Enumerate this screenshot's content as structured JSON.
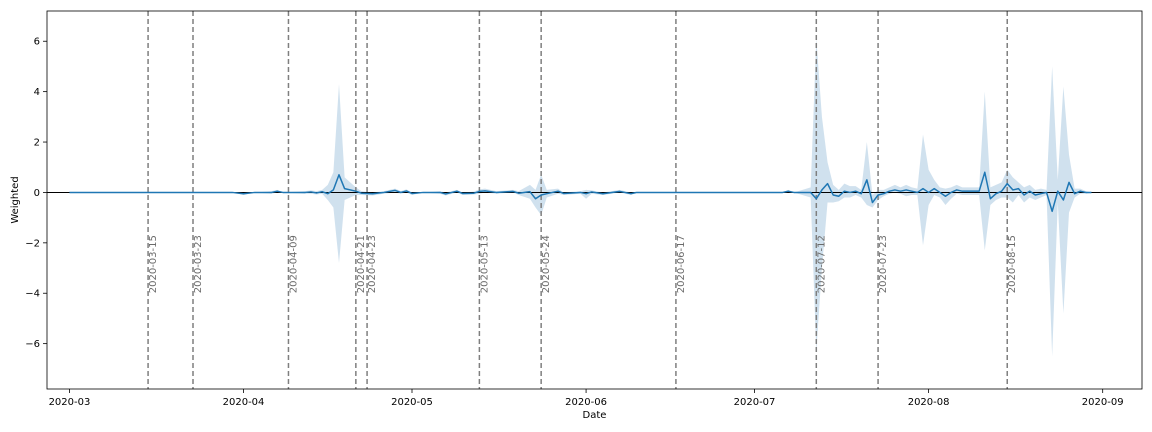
{
  "chart_data": {
    "type": "line",
    "xlabel": "Date",
    "ylabel": "Weighted",
    "x_start": "2020-02-26",
    "x_end": "2020-09-08",
    "ylim": [
      -7.8,
      7.2
    ],
    "y_ticks": [
      -6,
      -4,
      -2,
      0,
      2,
      4,
      6
    ],
    "x_ticks": [
      {
        "date": "2020-03-01",
        "label": "2020-03"
      },
      {
        "date": "2020-04-01",
        "label": "2020-04"
      },
      {
        "date": "2020-05-01",
        "label": "2020-05"
      },
      {
        "date": "2020-06-01",
        "label": "2020-06"
      },
      {
        "date": "2020-07-01",
        "label": "2020-07"
      },
      {
        "date": "2020-08-01",
        "label": "2020-08"
      },
      {
        "date": "2020-09-01",
        "label": "2020-09"
      }
    ],
    "horizontal_line": 0,
    "grid": false,
    "colors": {
      "line": "#1f77b4",
      "band": "#aac8e0",
      "vline": "#7f7f7f",
      "label": "#6b6b6b"
    },
    "vlines": [
      {
        "date": "2020-03-15",
        "label": "2020-03-15"
      },
      {
        "date": "2020-03-23",
        "label": "2020-03-23"
      },
      {
        "date": "2020-04-09",
        "label": "2020-04-09"
      },
      {
        "date": "2020-04-21",
        "label": "2020-04-21"
      },
      {
        "date": "2020-04-23",
        "label": "2020-04-23"
      },
      {
        "date": "2020-05-13",
        "label": "2020-05-13"
      },
      {
        "date": "2020-05-24",
        "label": "2020-05-24"
      },
      {
        "date": "2020-06-17",
        "label": "2020-06-17"
      },
      {
        "date": "2020-07-12",
        "label": "2020-07-12"
      },
      {
        "date": "2020-07-23",
        "label": "2020-07-23"
      },
      {
        "date": "2020-08-15",
        "label": "2020-08-15"
      }
    ],
    "series": [
      {
        "points": [
          {
            "x": "2020-03-01",
            "y": 0,
            "lo": 0,
            "hi": 0
          },
          {
            "x": "2020-03-15",
            "y": 0,
            "lo": 0,
            "hi": 0
          },
          {
            "x": "2020-03-30",
            "y": 0,
            "lo": 0,
            "hi": 0
          },
          {
            "x": "2020-04-01",
            "y": -0.05,
            "lo": -0.1,
            "hi": 0
          },
          {
            "x": "2020-04-03",
            "y": 0,
            "lo": 0,
            "hi": 0
          },
          {
            "x": "2020-04-06",
            "y": 0,
            "lo": -0.05,
            "hi": 0.05
          },
          {
            "x": "2020-04-07",
            "y": 0.05,
            "lo": 0,
            "hi": 0.1
          },
          {
            "x": "2020-04-08",
            "y": 0,
            "lo": 0,
            "hi": 0
          },
          {
            "x": "2020-04-12",
            "y": 0,
            "lo": -0.05,
            "hi": 0.05
          },
          {
            "x": "2020-04-13",
            "y": 0.02,
            "lo": -0.05,
            "hi": 0.08
          },
          {
            "x": "2020-04-14",
            "y": -0.02,
            "lo": -0.08,
            "hi": 0.05
          },
          {
            "x": "2020-04-15",
            "y": 0.03,
            "lo": -0.05,
            "hi": 0.1
          },
          {
            "x": "2020-04-16",
            "y": -0.05,
            "lo": -0.3,
            "hi": 0.3
          },
          {
            "x": "2020-04-17",
            "y": 0.1,
            "lo": -0.6,
            "hi": 0.8
          },
          {
            "x": "2020-04-18",
            "y": 0.7,
            "lo": -2.8,
            "hi": 4.3
          },
          {
            "x": "2020-04-19",
            "y": 0.15,
            "lo": -0.3,
            "hi": 0.6
          },
          {
            "x": "2020-04-21",
            "y": 0.05,
            "lo": -0.1,
            "hi": 0.2
          },
          {
            "x": "2020-04-22",
            "y": -0.03,
            "lo": -0.1,
            "hi": 0.05
          },
          {
            "x": "2020-04-24",
            "y": -0.05,
            "lo": -0.12,
            "hi": 0
          },
          {
            "x": "2020-04-26",
            "y": 0,
            "lo": -0.05,
            "hi": 0.05
          },
          {
            "x": "2020-04-28",
            "y": 0.08,
            "lo": 0,
            "hi": 0.15
          },
          {
            "x": "2020-04-29",
            "y": 0,
            "lo": -0.05,
            "hi": 0.05
          },
          {
            "x": "2020-04-30",
            "y": 0.06,
            "lo": 0,
            "hi": 0.12
          },
          {
            "x": "2020-05-01",
            "y": -0.04,
            "lo": -0.1,
            "hi": 0
          },
          {
            "x": "2020-05-03",
            "y": 0,
            "lo": 0,
            "hi": 0
          },
          {
            "x": "2020-05-06",
            "y": 0,
            "lo": -0.05,
            "hi": 0.05
          },
          {
            "x": "2020-05-07",
            "y": -0.06,
            "lo": -0.12,
            "hi": 0
          },
          {
            "x": "2020-05-09",
            "y": 0.05,
            "lo": 0,
            "hi": 0.1
          },
          {
            "x": "2020-05-10",
            "y": -0.04,
            "lo": -0.1,
            "hi": 0
          },
          {
            "x": "2020-05-12",
            "y": -0.03,
            "lo": -0.08,
            "hi": 0.03
          },
          {
            "x": "2020-05-13",
            "y": 0.04,
            "lo": -0.05,
            "hi": 0.12
          },
          {
            "x": "2020-05-14",
            "y": 0.06,
            "lo": 0,
            "hi": 0.15
          },
          {
            "x": "2020-05-16",
            "y": 0,
            "lo": -0.05,
            "hi": 0.05
          },
          {
            "x": "2020-05-19",
            "y": 0.04,
            "lo": 0,
            "hi": 0.1
          },
          {
            "x": "2020-05-20",
            "y": -0.03,
            "lo": -0.1,
            "hi": 0.05
          },
          {
            "x": "2020-05-22",
            "y": 0.03,
            "lo": -0.25,
            "hi": 0.3
          },
          {
            "x": "2020-05-23",
            "y": -0.25,
            "lo": -0.6,
            "hi": 0.1
          },
          {
            "x": "2020-05-24",
            "y": -0.1,
            "lo": -0.9,
            "hi": 0.7
          },
          {
            "x": "2020-05-25",
            "y": -0.05,
            "lo": -0.2,
            "hi": 0.1
          },
          {
            "x": "2020-05-27",
            "y": 0.05,
            "lo": -0.05,
            "hi": 0.15
          },
          {
            "x": "2020-05-28",
            "y": -0.04,
            "lo": -0.1,
            "hi": 0
          },
          {
            "x": "2020-05-31",
            "y": 0,
            "lo": -0.05,
            "hi": 0.05
          },
          {
            "x": "2020-06-01",
            "y": -0.05,
            "lo": -0.25,
            "hi": 0.1
          },
          {
            "x": "2020-06-02",
            "y": 0.02,
            "lo": -0.05,
            "hi": 0.08
          },
          {
            "x": "2020-06-04",
            "y": -0.05,
            "lo": -0.1,
            "hi": 0
          },
          {
            "x": "2020-06-07",
            "y": 0.04,
            "lo": 0,
            "hi": 0.1
          },
          {
            "x": "2020-06-09",
            "y": -0.05,
            "lo": -0.1,
            "hi": 0
          },
          {
            "x": "2020-06-10",
            "y": 0,
            "lo": 0,
            "hi": 0
          },
          {
            "x": "2020-07-06",
            "y": 0,
            "lo": 0,
            "hi": 0
          },
          {
            "x": "2020-07-07",
            "y": 0.05,
            "lo": 0,
            "hi": 0.1
          },
          {
            "x": "2020-07-08",
            "y": 0,
            "lo": 0,
            "hi": 0
          },
          {
            "x": "2020-07-11",
            "y": 0,
            "lo": -0.2,
            "hi": 0.2
          },
          {
            "x": "2020-07-12",
            "y": -0.25,
            "lo": -6.3,
            "hi": 6.1
          },
          {
            "x": "2020-07-13",
            "y": 0.1,
            "lo": -3.0,
            "hi": 3.0
          },
          {
            "x": "2020-07-14",
            "y": 0.35,
            "lo": -0.4,
            "hi": 1.2
          },
          {
            "x": "2020-07-15",
            "y": -0.1,
            "lo": -0.4,
            "hi": 0.3
          },
          {
            "x": "2020-07-16",
            "y": -0.15,
            "lo": -0.35,
            "hi": 0.1
          },
          {
            "x": "2020-07-17",
            "y": 0.05,
            "lo": -0.2,
            "hi": 0.35
          },
          {
            "x": "2020-07-18",
            "y": 0,
            "lo": -0.2,
            "hi": 0.25
          },
          {
            "x": "2020-07-19",
            "y": 0.05,
            "lo": -0.1,
            "hi": 0.25
          },
          {
            "x": "2020-07-20",
            "y": -0.05,
            "lo": -0.2,
            "hi": 0.1
          },
          {
            "x": "2020-07-21",
            "y": 0.5,
            "lo": -0.5,
            "hi": 2.0
          },
          {
            "x": "2020-07-22",
            "y": -0.4,
            "lo": -0.6,
            "hi": -0.1
          },
          {
            "x": "2020-07-23",
            "y": -0.1,
            "lo": -0.3,
            "hi": 0.1
          },
          {
            "x": "2020-07-24",
            "y": -0.05,
            "lo": -0.15,
            "hi": 0.1
          },
          {
            "x": "2020-07-25",
            "y": 0.05,
            "lo": -0.05,
            "hi": 0.2
          },
          {
            "x": "2020-07-26",
            "y": 0.1,
            "lo": 0,
            "hi": 0.3
          },
          {
            "x": "2020-07-27",
            "y": 0.05,
            "lo": -0.05,
            "hi": 0.2
          },
          {
            "x": "2020-07-28",
            "y": 0.1,
            "lo": -0.15,
            "hi": 0.3
          },
          {
            "x": "2020-07-29",
            "y": 0.05,
            "lo": -0.1,
            "hi": 0.2
          },
          {
            "x": "2020-07-30",
            "y": 0,
            "lo": -0.1,
            "hi": 0.15
          },
          {
            "x": "2020-07-31",
            "y": 0.15,
            "lo": -2.1,
            "hi": 2.3
          },
          {
            "x": "2020-08-01",
            "y": 0,
            "lo": -0.5,
            "hi": 0.9
          },
          {
            "x": "2020-08-02",
            "y": 0.15,
            "lo": -0.1,
            "hi": 0.5
          },
          {
            "x": "2020-08-03",
            "y": 0,
            "lo": -0.2,
            "hi": 0.2
          },
          {
            "x": "2020-08-04",
            "y": -0.15,
            "lo": -0.5,
            "hi": 0.15
          },
          {
            "x": "2020-08-05",
            "y": 0,
            "lo": -0.25,
            "hi": 0.2
          },
          {
            "x": "2020-08-06",
            "y": 0.1,
            "lo": -0.05,
            "hi": 0.3
          },
          {
            "x": "2020-08-07",
            "y": 0.05,
            "lo": -0.1,
            "hi": 0.2
          },
          {
            "x": "2020-08-08",
            "y": 0.05,
            "lo": -0.1,
            "hi": 0.2
          },
          {
            "x": "2020-08-10",
            "y": 0.05,
            "lo": -0.1,
            "hi": 0.2
          },
          {
            "x": "2020-08-11",
            "y": 0.8,
            "lo": -2.3,
            "hi": 4.0
          },
          {
            "x": "2020-08-12",
            "y": -0.25,
            "lo": -0.5,
            "hi": 0.2
          },
          {
            "x": "2020-08-13",
            "y": -0.05,
            "lo": -0.3,
            "hi": 0.3
          },
          {
            "x": "2020-08-14",
            "y": 0.05,
            "lo": -0.2,
            "hi": 0.4
          },
          {
            "x": "2020-08-15",
            "y": 0.35,
            "lo": -0.2,
            "hi": 0.9
          },
          {
            "x": "2020-08-16",
            "y": 0.1,
            "lo": -0.4,
            "hi": 0.6
          },
          {
            "x": "2020-08-17",
            "y": 0.15,
            "lo": -0.1,
            "hi": 0.4
          },
          {
            "x": "2020-08-18",
            "y": -0.1,
            "lo": -0.4,
            "hi": 0.2
          },
          {
            "x": "2020-08-19",
            "y": 0.05,
            "lo": -0.2,
            "hi": 0.3
          },
          {
            "x": "2020-08-20",
            "y": -0.1,
            "lo": -0.3,
            "hi": 0.1
          },
          {
            "x": "2020-08-21",
            "y": -0.05,
            "lo": -0.2,
            "hi": 0.15
          },
          {
            "x": "2020-08-22",
            "y": 0,
            "lo": -0.1,
            "hi": 0.1
          },
          {
            "x": "2020-08-23",
            "y": -0.75,
            "lo": -6.5,
            "hi": 5.0
          },
          {
            "x": "2020-08-24",
            "y": 0.05,
            "lo": -0.4,
            "hi": 0.5
          },
          {
            "x": "2020-08-25",
            "y": -0.3,
            "lo": -4.8,
            "hi": 4.2
          },
          {
            "x": "2020-08-26",
            "y": 0.4,
            "lo": -0.8,
            "hi": 1.5
          },
          {
            "x": "2020-08-27",
            "y": -0.05,
            "lo": -0.2,
            "hi": 0.15
          },
          {
            "x": "2020-08-28",
            "y": 0.05,
            "lo": -0.05,
            "hi": 0.15
          },
          {
            "x": "2020-08-29",
            "y": 0,
            "lo": -0.05,
            "hi": 0.05
          },
          {
            "x": "2020-08-30",
            "y": 0,
            "lo": 0,
            "hi": 0
          }
        ]
      }
    ]
  }
}
